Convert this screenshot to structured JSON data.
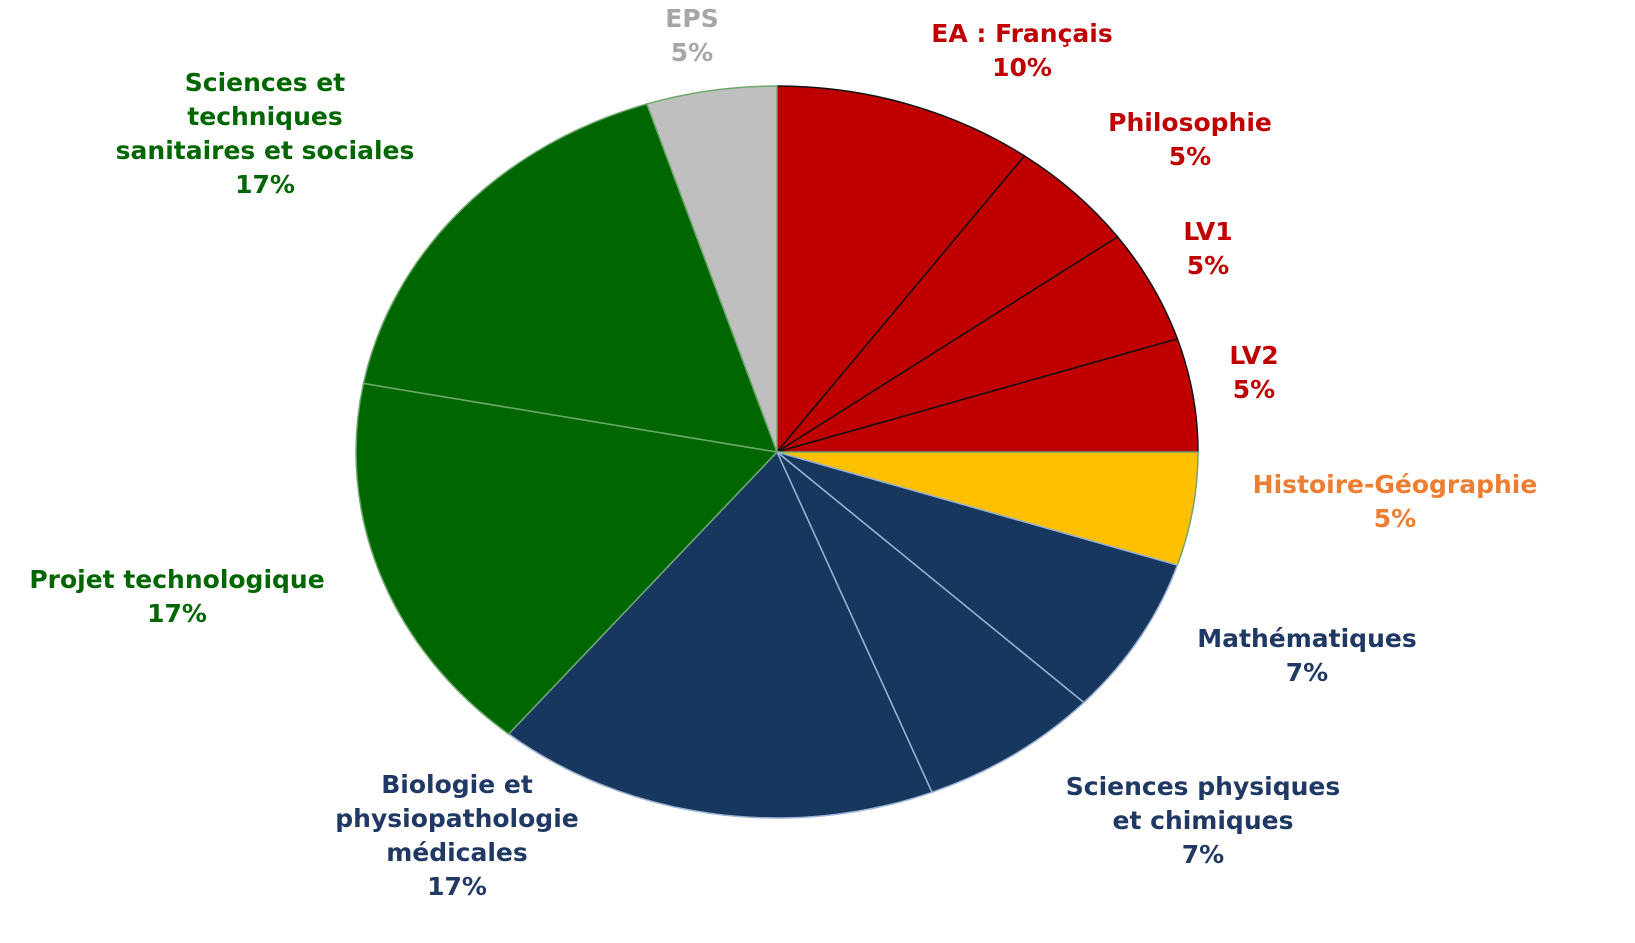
{
  "chart_data": {
    "type": "pie",
    "categories": [
      "EA : Français",
      "Philosophie",
      "LV1",
      "LV2",
      "Histoire-Géographie",
      "Mathématiques",
      "Sciences physiques\net chimiques",
      "Biologie et\nphysiopathologie\nmédicales",
      "Projet technologique",
      "Sciences et\ntechniques\nsanitaires et sociales",
      "EPS"
    ],
    "values": [
      10,
      5,
      5,
      5,
      5,
      7,
      7,
      17,
      17,
      17,
      5
    ],
    "value_labels": [
      "10%",
      "5%",
      "5%",
      "5%",
      "5%",
      "7%",
      "7%",
      "17%",
      "17%",
      "17%",
      "5%"
    ],
    "colors": [
      "#c00000",
      "#c00000",
      "#c00000",
      "#c00000",
      "#ffc000",
      "#17375e",
      "#17375e",
      "#17375e",
      "#006600",
      "#006600",
      "#bfbfbf"
    ],
    "label_colors": [
      "#c00000",
      "#c00000",
      "#c00000",
      "#c00000",
      "#ed7d31",
      "#1f3864",
      "#1f3864",
      "#1f3864",
      "#006600",
      "#006600",
      "#a6a6a6"
    ]
  }
}
